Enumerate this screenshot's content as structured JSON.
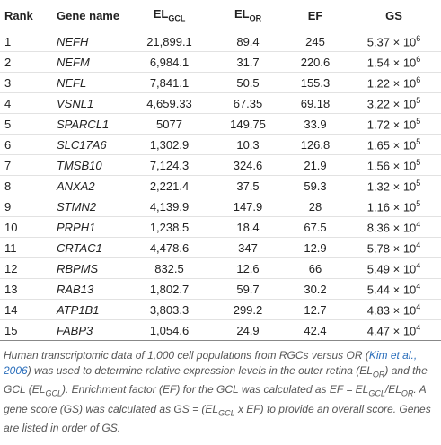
{
  "table": {
    "headers": [
      {
        "text": "Rank"
      },
      {
        "text": "Gene name"
      },
      {
        "text": "EL",
        "sub": "GCL"
      },
      {
        "text": "EL",
        "sub": "OR"
      },
      {
        "text": "EF"
      },
      {
        "text": "GS"
      }
    ],
    "rows": [
      [
        "1",
        "NEFH",
        "21,899.1",
        "89.4",
        "245",
        {
          "mantissa": "5.37",
          "times": "× 10",
          "exp": "6"
        }
      ],
      [
        "2",
        "NEFM",
        "6,984.1",
        "31.7",
        "220.6",
        {
          "mantissa": "1.54",
          "times": "× 10",
          "exp": "6"
        }
      ],
      [
        "3",
        "NEFL",
        "7,841.1",
        "50.5",
        "155.3",
        {
          "mantissa": "1.22",
          "times": "× 10",
          "exp": "6"
        }
      ],
      [
        "4",
        "VSNL1",
        "4,659.33",
        "67.35",
        "69.18",
        {
          "mantissa": "3.22",
          "times": "× 10",
          "exp": "5"
        }
      ],
      [
        "5",
        "SPARCL1",
        "5077",
        "149.75",
        "33.9",
        {
          "mantissa": "1.72",
          "times": "× 10",
          "exp": "5"
        }
      ],
      [
        "6",
        "SLC17A6",
        "1,302.9",
        "10.3",
        "126.8",
        {
          "mantissa": "1.65",
          "times": "× 10",
          "exp": "5"
        }
      ],
      [
        "7",
        "TMSB10",
        "7,124.3",
        "324.6",
        "21.9",
        {
          "mantissa": "1.56",
          "times": "× 10",
          "exp": "5"
        }
      ],
      [
        "8",
        "ANXA2",
        "2,221.4",
        "37.5",
        "59.3",
        {
          "mantissa": "1.32",
          "times": "× 10",
          "exp": "5"
        }
      ],
      [
        "9",
        "STMN2",
        "4,139.9",
        "147.9",
        "28",
        {
          "mantissa": "1.16",
          "times": "× 10",
          "exp": "5"
        }
      ],
      [
        "10",
        "PRPH1",
        "1,238.5",
        "18.4",
        "67.5",
        {
          "mantissa": "8.36",
          "times": "× 10",
          "exp": "4"
        }
      ],
      [
        "11",
        "CRTAC1",
        "4,478.6",
        "347",
        "12.9",
        {
          "mantissa": "5.78",
          "times": "× 10",
          "exp": "4"
        }
      ],
      [
        "12",
        "RBPMS",
        "832.5",
        "12.6",
        "66",
        {
          "mantissa": "5.49",
          "times": "× 10",
          "exp": "4"
        }
      ],
      [
        "13",
        "RAB13",
        "1,802.7",
        "59.7",
        "30.2",
        {
          "mantissa": "5.44",
          "times": "× 10",
          "exp": "4"
        }
      ],
      [
        "14",
        "ATP1B1",
        "3,803.3",
        "299.2",
        "12.7",
        {
          "mantissa": "4.83",
          "times": "× 10",
          "exp": "4"
        }
      ],
      [
        "15",
        "FABP3",
        "1,054.6",
        "24.9",
        "42.4",
        {
          "mantissa": "4.47",
          "times": "× 10",
          "exp": "4"
        }
      ]
    ]
  },
  "caption": [
    {
      "text": "Human transcriptomic data of 1,000 cell populations from RGCs versus OR ("
    },
    {
      "text": "Kim et al., 2006",
      "kind": "link"
    },
    {
      "text": ") was used to determine relative expression levels in the outer retina (EL"
    },
    {
      "text": "OR",
      "kind": "sub"
    },
    {
      "text": ") and the GCL (EL"
    },
    {
      "text": "GCL",
      "kind": "sub"
    },
    {
      "text": "). Enrichment factor (EF) for the GCL was calculated as EF = EL"
    },
    {
      "text": "GCL",
      "kind": "sub"
    },
    {
      "text": "/EL"
    },
    {
      "text": "OR",
      "kind": "sub"
    },
    {
      "text": ". A gene score (GS) was calculated as GS = (EL"
    },
    {
      "text": "GCL",
      "kind": "sub"
    },
    {
      "text": " x EF) to provide an overall score. Genes are listed in order of GS."
    }
  ]
}
